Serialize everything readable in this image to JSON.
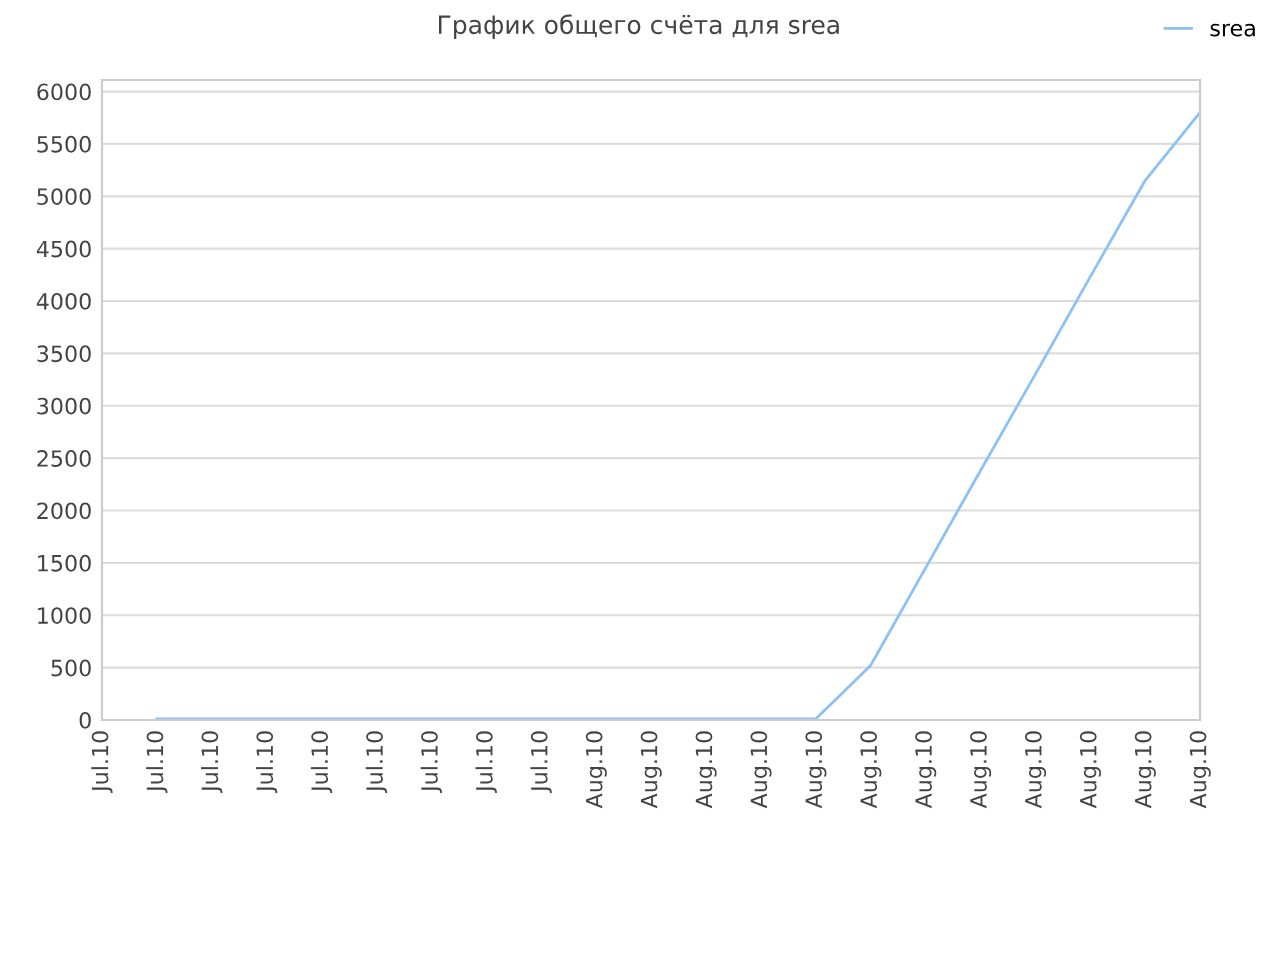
{
  "chart_data": {
    "type": "line",
    "title": "График общего счёта для srea",
    "categories": [
      "Jul.10",
      "Jul.10",
      "Jul.10",
      "Jul.10",
      "Jul.10",
      "Jul.10",
      "Jul.10",
      "Jul.10",
      "Jul.10",
      "Aug.10",
      "Aug.10",
      "Aug.10",
      "Aug.10",
      "Aug.10",
      "Aug.10",
      "Aug.10",
      "Aug.10",
      "Aug.10",
      "Aug.10",
      "Aug.10",
      "Aug.10"
    ],
    "series": [
      {
        "name": "srea",
        "color": "#8cc1f5",
        "values": [
          null,
          10,
          10,
          10,
          10,
          10,
          10,
          10,
          10,
          10,
          10,
          10,
          10,
          10,
          520,
          1450,
          2380,
          3300,
          4230,
          5150,
          5800
        ]
      }
    ],
    "ylim": [
      0,
      6110
    ],
    "yticks": [
      0,
      500,
      1000,
      1500,
      2000,
      2500,
      3000,
      3500,
      4000,
      4500,
      5000,
      5500,
      6000
    ],
    "grid": "y",
    "legend": "top right",
    "marker": "none",
    "line_style": "solid"
  }
}
